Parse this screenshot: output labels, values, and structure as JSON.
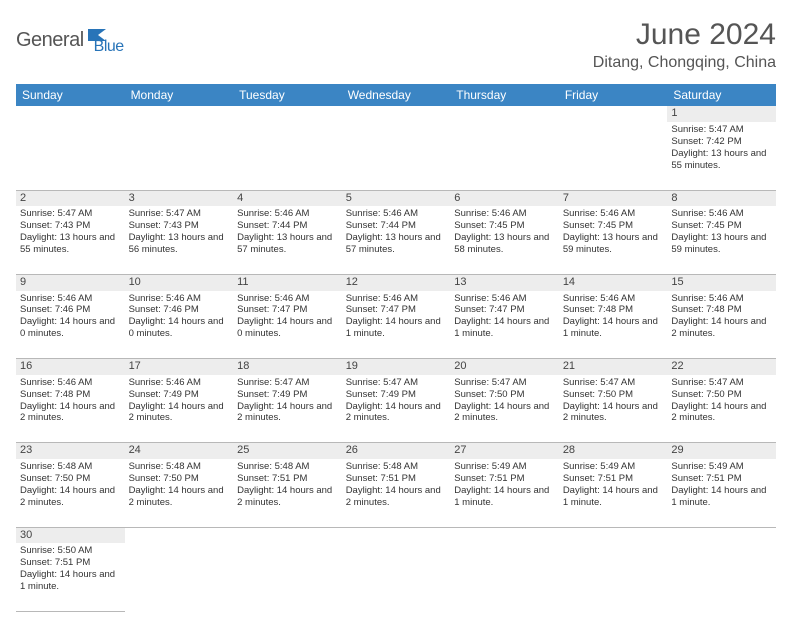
{
  "logo": {
    "part1": "General",
    "part2": "Blue"
  },
  "title": "June 2024",
  "location": "Ditang, Chongqing, China",
  "colors": {
    "header_bg": "#3b85c4",
    "header_text": "#ffffff",
    "daynum_bg": "#ededed",
    "text": "#333333",
    "title_color": "#555555",
    "logo_gray": "#555555",
    "logo_blue": "#2874b8",
    "border": "#b8b8b8"
  },
  "weekdays": [
    "Sunday",
    "Monday",
    "Tuesday",
    "Wednesday",
    "Thursday",
    "Friday",
    "Saturday"
  ],
  "weeks": [
    {
      "nums": [
        "",
        "",
        "",
        "",
        "",
        "",
        "1"
      ],
      "cells": [
        null,
        null,
        null,
        null,
        null,
        null,
        {
          "sunrise": "Sunrise: 5:47 AM",
          "sunset": "Sunset: 7:42 PM",
          "daylight": "Daylight: 13 hours and 55 minutes."
        }
      ]
    },
    {
      "nums": [
        "2",
        "3",
        "4",
        "5",
        "6",
        "7",
        "8"
      ],
      "cells": [
        {
          "sunrise": "Sunrise: 5:47 AM",
          "sunset": "Sunset: 7:43 PM",
          "daylight": "Daylight: 13 hours and 55 minutes."
        },
        {
          "sunrise": "Sunrise: 5:47 AM",
          "sunset": "Sunset: 7:43 PM",
          "daylight": "Daylight: 13 hours and 56 minutes."
        },
        {
          "sunrise": "Sunrise: 5:46 AM",
          "sunset": "Sunset: 7:44 PM",
          "daylight": "Daylight: 13 hours and 57 minutes."
        },
        {
          "sunrise": "Sunrise: 5:46 AM",
          "sunset": "Sunset: 7:44 PM",
          "daylight": "Daylight: 13 hours and 57 minutes."
        },
        {
          "sunrise": "Sunrise: 5:46 AM",
          "sunset": "Sunset: 7:45 PM",
          "daylight": "Daylight: 13 hours and 58 minutes."
        },
        {
          "sunrise": "Sunrise: 5:46 AM",
          "sunset": "Sunset: 7:45 PM",
          "daylight": "Daylight: 13 hours and 59 minutes."
        },
        {
          "sunrise": "Sunrise: 5:46 AM",
          "sunset": "Sunset: 7:45 PM",
          "daylight": "Daylight: 13 hours and 59 minutes."
        }
      ]
    },
    {
      "nums": [
        "9",
        "10",
        "11",
        "12",
        "13",
        "14",
        "15"
      ],
      "cells": [
        {
          "sunrise": "Sunrise: 5:46 AM",
          "sunset": "Sunset: 7:46 PM",
          "daylight": "Daylight: 14 hours and 0 minutes."
        },
        {
          "sunrise": "Sunrise: 5:46 AM",
          "sunset": "Sunset: 7:46 PM",
          "daylight": "Daylight: 14 hours and 0 minutes."
        },
        {
          "sunrise": "Sunrise: 5:46 AM",
          "sunset": "Sunset: 7:47 PM",
          "daylight": "Daylight: 14 hours and 0 minutes."
        },
        {
          "sunrise": "Sunrise: 5:46 AM",
          "sunset": "Sunset: 7:47 PM",
          "daylight": "Daylight: 14 hours and 1 minute."
        },
        {
          "sunrise": "Sunrise: 5:46 AM",
          "sunset": "Sunset: 7:47 PM",
          "daylight": "Daylight: 14 hours and 1 minute."
        },
        {
          "sunrise": "Sunrise: 5:46 AM",
          "sunset": "Sunset: 7:48 PM",
          "daylight": "Daylight: 14 hours and 1 minute."
        },
        {
          "sunrise": "Sunrise: 5:46 AM",
          "sunset": "Sunset: 7:48 PM",
          "daylight": "Daylight: 14 hours and 2 minutes."
        }
      ]
    },
    {
      "nums": [
        "16",
        "17",
        "18",
        "19",
        "20",
        "21",
        "22"
      ],
      "cells": [
        {
          "sunrise": "Sunrise: 5:46 AM",
          "sunset": "Sunset: 7:48 PM",
          "daylight": "Daylight: 14 hours and 2 minutes."
        },
        {
          "sunrise": "Sunrise: 5:46 AM",
          "sunset": "Sunset: 7:49 PM",
          "daylight": "Daylight: 14 hours and 2 minutes."
        },
        {
          "sunrise": "Sunrise: 5:47 AM",
          "sunset": "Sunset: 7:49 PM",
          "daylight": "Daylight: 14 hours and 2 minutes."
        },
        {
          "sunrise": "Sunrise: 5:47 AM",
          "sunset": "Sunset: 7:49 PM",
          "daylight": "Daylight: 14 hours and 2 minutes."
        },
        {
          "sunrise": "Sunrise: 5:47 AM",
          "sunset": "Sunset: 7:50 PM",
          "daylight": "Daylight: 14 hours and 2 minutes."
        },
        {
          "sunrise": "Sunrise: 5:47 AM",
          "sunset": "Sunset: 7:50 PM",
          "daylight": "Daylight: 14 hours and 2 minutes."
        },
        {
          "sunrise": "Sunrise: 5:47 AM",
          "sunset": "Sunset: 7:50 PM",
          "daylight": "Daylight: 14 hours and 2 minutes."
        }
      ]
    },
    {
      "nums": [
        "23",
        "24",
        "25",
        "26",
        "27",
        "28",
        "29"
      ],
      "cells": [
        {
          "sunrise": "Sunrise: 5:48 AM",
          "sunset": "Sunset: 7:50 PM",
          "daylight": "Daylight: 14 hours and 2 minutes."
        },
        {
          "sunrise": "Sunrise: 5:48 AM",
          "sunset": "Sunset: 7:50 PM",
          "daylight": "Daylight: 14 hours and 2 minutes."
        },
        {
          "sunrise": "Sunrise: 5:48 AM",
          "sunset": "Sunset: 7:51 PM",
          "daylight": "Daylight: 14 hours and 2 minutes."
        },
        {
          "sunrise": "Sunrise: 5:48 AM",
          "sunset": "Sunset: 7:51 PM",
          "daylight": "Daylight: 14 hours and 2 minutes."
        },
        {
          "sunrise": "Sunrise: 5:49 AM",
          "sunset": "Sunset: 7:51 PM",
          "daylight": "Daylight: 14 hours and 1 minute."
        },
        {
          "sunrise": "Sunrise: 5:49 AM",
          "sunset": "Sunset: 7:51 PM",
          "daylight": "Daylight: 14 hours and 1 minute."
        },
        {
          "sunrise": "Sunrise: 5:49 AM",
          "sunset": "Sunset: 7:51 PM",
          "daylight": "Daylight: 14 hours and 1 minute."
        }
      ]
    },
    {
      "nums": [
        "30",
        "",
        "",
        "",
        "",
        "",
        ""
      ],
      "cells": [
        {
          "sunrise": "Sunrise: 5:50 AM",
          "sunset": "Sunset: 7:51 PM",
          "daylight": "Daylight: 14 hours and 1 minute."
        },
        null,
        null,
        null,
        null,
        null,
        null
      ]
    }
  ]
}
